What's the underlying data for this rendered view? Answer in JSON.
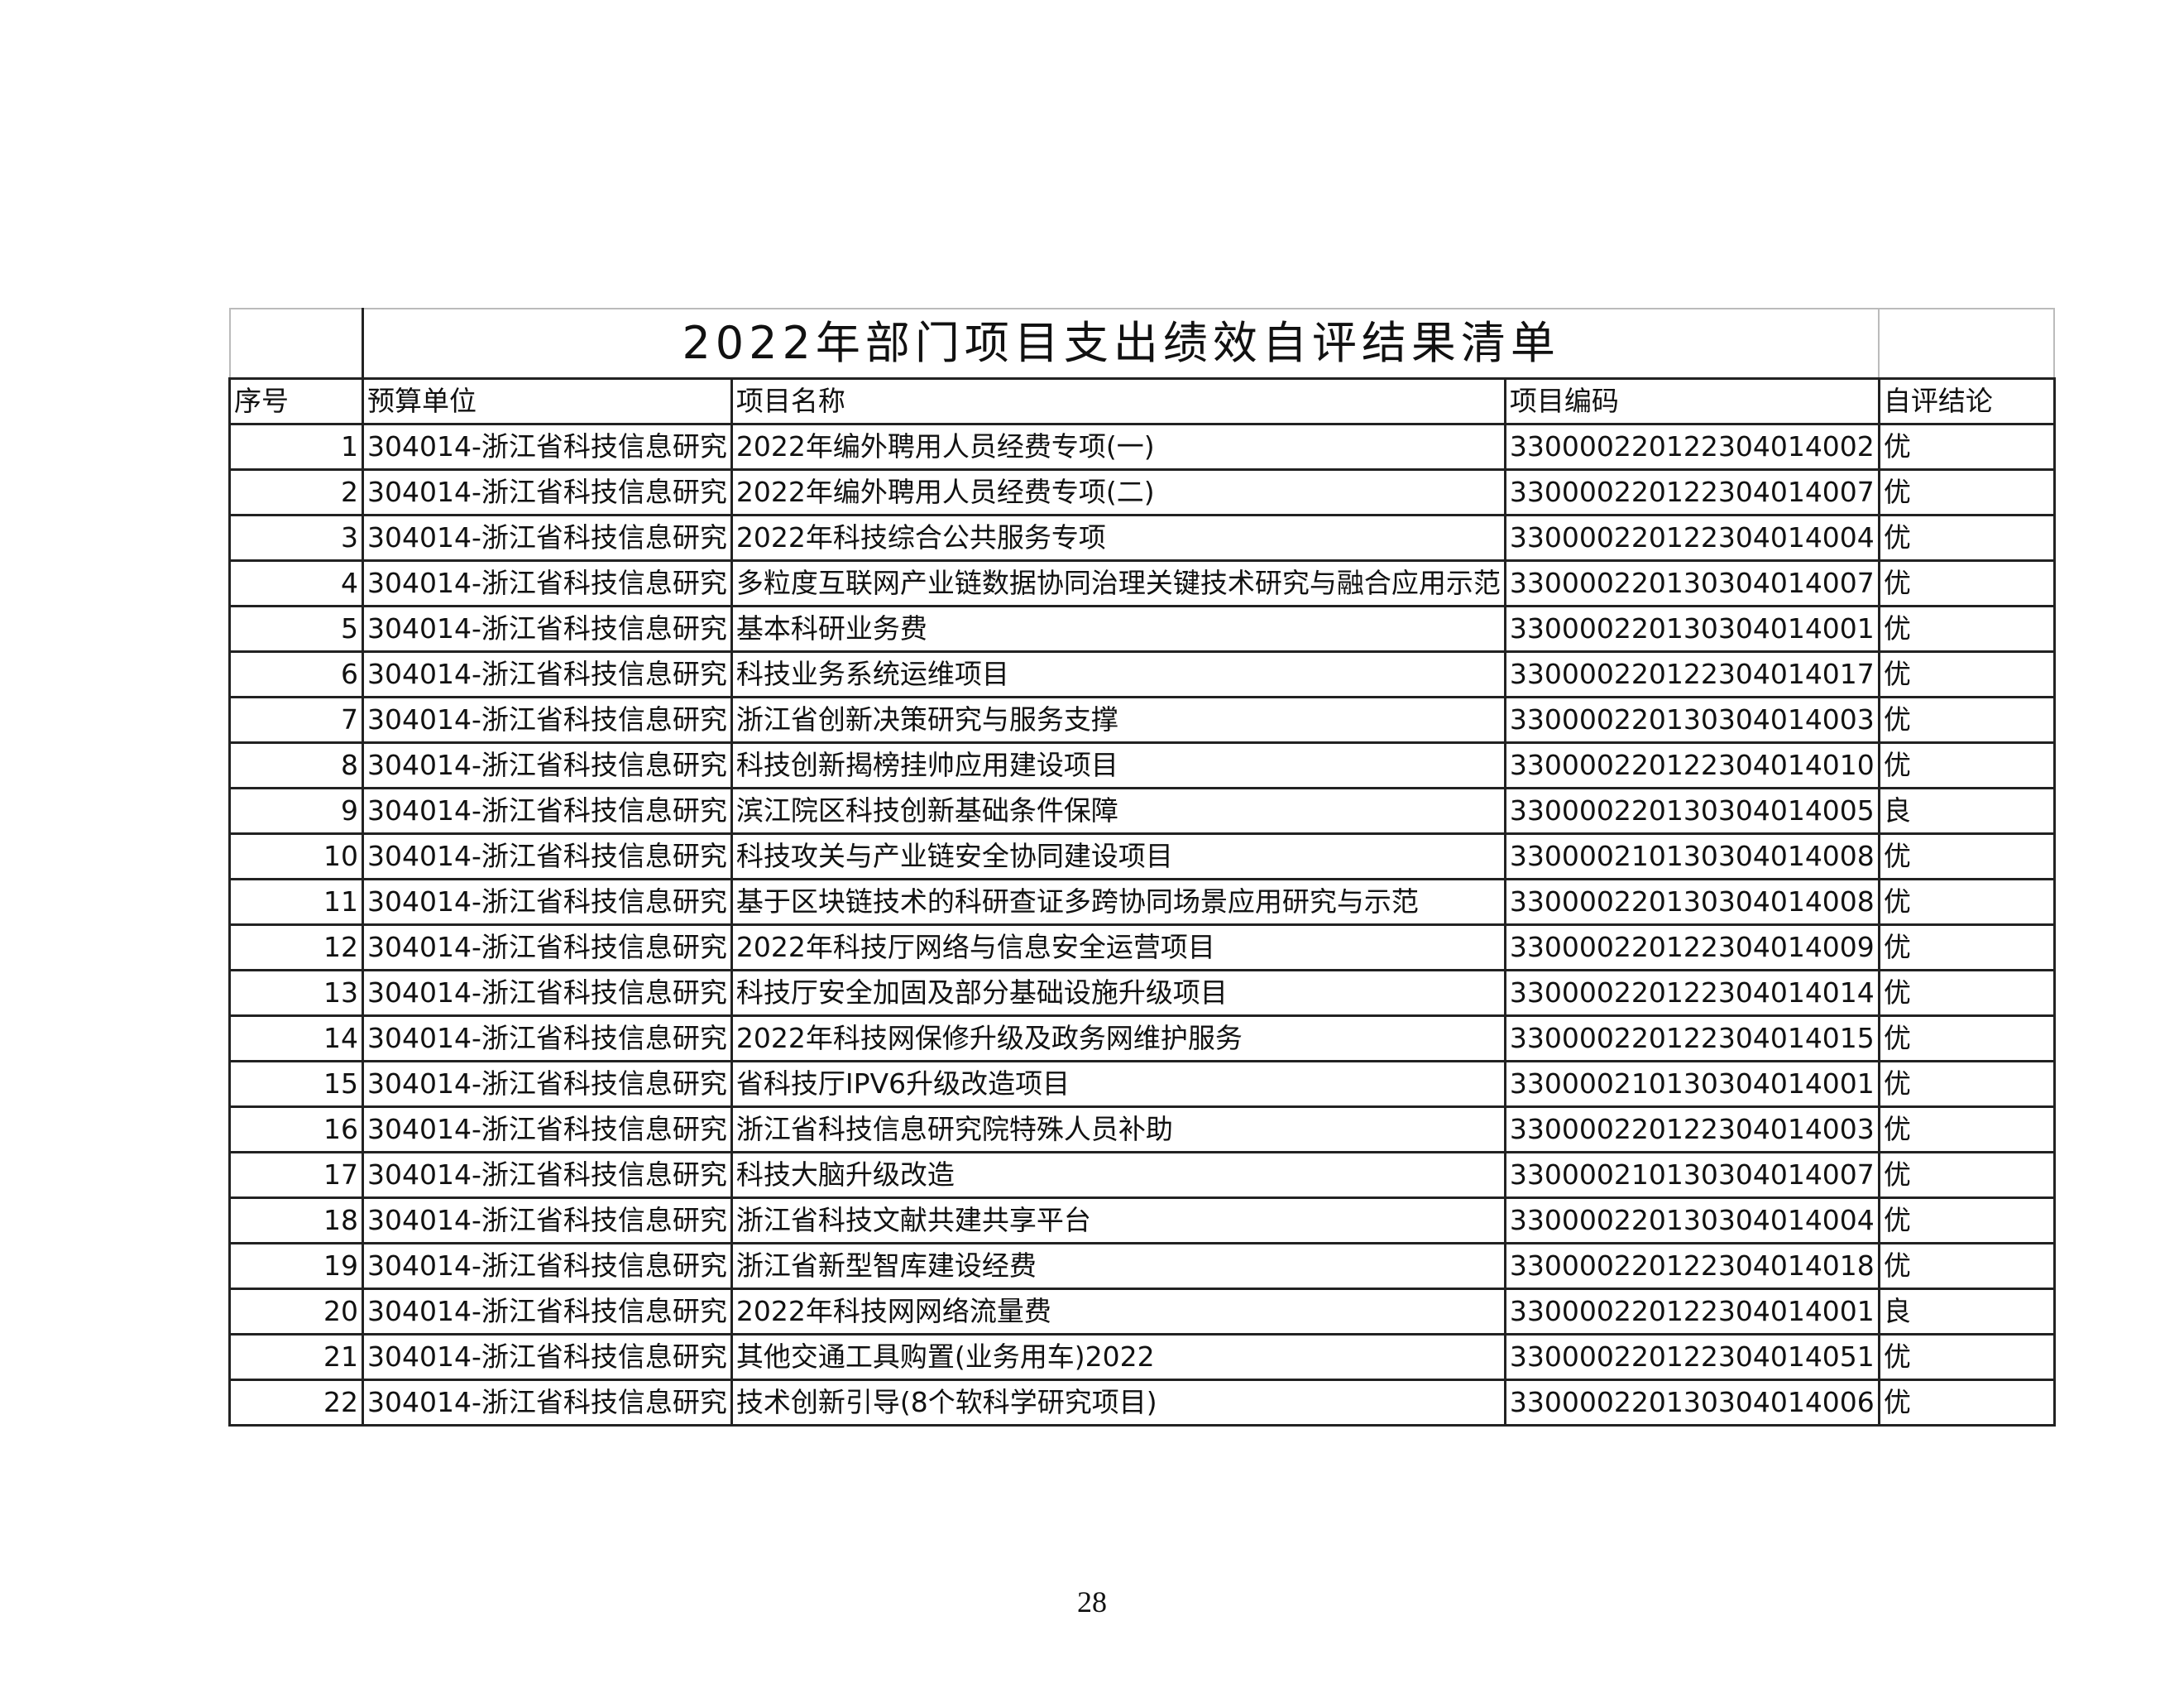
{
  "title": "2022年部门项目支出绩效自评结果清单",
  "headers": [
    "序号",
    "预算单位",
    "项目名称",
    "项目编码",
    "自评结论"
  ],
  "rows": [
    [
      "1",
      "304014-浙江省科技信息研究",
      "2022年编外聘用人员经费专项(一)",
      "330000220122304014002",
      "优"
    ],
    [
      "2",
      "304014-浙江省科技信息研究",
      "2022年编外聘用人员经费专项(二)",
      "330000220122304014007",
      "优"
    ],
    [
      "3",
      "304014-浙江省科技信息研究",
      "2022年科技综合公共服务专项",
      "330000220122304014004",
      "优"
    ],
    [
      "4",
      "304014-浙江省科技信息研究",
      "多粒度互联网产业链数据协同治理关键技术研究与融合应用示范",
      "330000220130304014007",
      "优"
    ],
    [
      "5",
      "304014-浙江省科技信息研究",
      "基本科研业务费",
      "330000220130304014001",
      "优"
    ],
    [
      "6",
      "304014-浙江省科技信息研究",
      "科技业务系统运维项目",
      "330000220122304014017",
      "优"
    ],
    [
      "7",
      "304014-浙江省科技信息研究",
      "浙江省创新决策研究与服务支撑",
      "330000220130304014003",
      "优"
    ],
    [
      "8",
      "304014-浙江省科技信息研究",
      "科技创新揭榜挂帅应用建设项目",
      "330000220122304014010",
      "优"
    ],
    [
      "9",
      "304014-浙江省科技信息研究",
      "滨江院区科技创新基础条件保障",
      "330000220130304014005",
      "良"
    ],
    [
      "10",
      "304014-浙江省科技信息研究",
      "科技攻关与产业链安全协同建设项目",
      "330000210130304014008",
      "优"
    ],
    [
      "11",
      "304014-浙江省科技信息研究",
      "基于区块链技术的科研查证多跨协同场景应用研究与示范",
      "330000220130304014008",
      "优"
    ],
    [
      "12",
      "304014-浙江省科技信息研究",
      "2022年科技厅网络与信息安全运营项目",
      "330000220122304014009",
      "优"
    ],
    [
      "13",
      "304014-浙江省科技信息研究",
      "科技厅安全加固及部分基础设施升级项目",
      "330000220122304014014",
      "优"
    ],
    [
      "14",
      "304014-浙江省科技信息研究",
      "2022年科技网保修升级及政务网维护服务",
      "330000220122304014015",
      "优"
    ],
    [
      "15",
      "304014-浙江省科技信息研究",
      "省科技厅IPV6升级改造项目",
      "330000210130304014001",
      "优"
    ],
    [
      "16",
      "304014-浙江省科技信息研究",
      "浙江省科技信息研究院特殊人员补助",
      "330000220122304014003",
      "优"
    ],
    [
      "17",
      "304014-浙江省科技信息研究",
      "科技大脑升级改造",
      "330000210130304014007",
      "优"
    ],
    [
      "18",
      "304014-浙江省科技信息研究",
      "浙江省科技文献共建共享平台",
      "330000220130304014004",
      "优"
    ],
    [
      "19",
      "304014-浙江省科技信息研究",
      "浙江省新型智库建设经费",
      "330000220122304014018",
      "优"
    ],
    [
      "20",
      "304014-浙江省科技信息研究",
      "2022年科技网网络流量费",
      "330000220122304014001",
      "良"
    ],
    [
      "21",
      "304014-浙江省科技信息研究",
      "其他交通工具购置(业务用车)2022",
      "330000220122304014051",
      "优"
    ],
    [
      "22",
      "304014-浙江省科技信息研究",
      "技术创新引导(8个软科学研究项目)",
      "330000220130304014006",
      "优"
    ]
  ],
  "page_number": "28"
}
